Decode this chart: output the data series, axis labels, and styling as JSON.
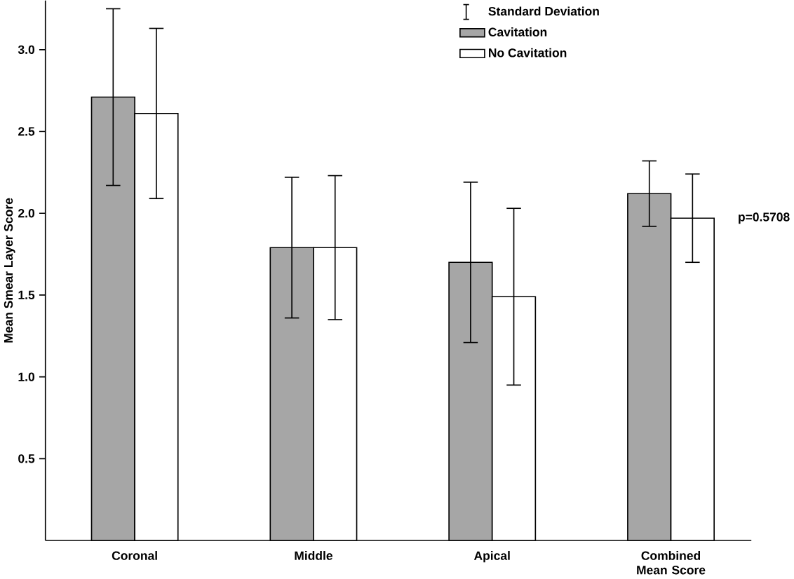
{
  "chart_data": {
    "type": "bar",
    "ylabel": "Mean Smear Layer Score",
    "categories": [
      "Coronal",
      "Middle",
      "Apical",
      "Combined Mean Score"
    ],
    "series": [
      {
        "name": "Cavitation",
        "color": "#a6a6a6",
        "values": [
          2.71,
          1.79,
          1.7,
          2.12
        ],
        "errors": [
          0.54,
          0.43,
          0.49,
          0.2
        ]
      },
      {
        "name": "No Cavitation",
        "color": "#ffffff",
        "values": [
          2.61,
          1.79,
          1.49,
          1.97
        ],
        "errors": [
          0.52,
          0.44,
          0.54,
          0.27
        ]
      }
    ],
    "ylim": [
      0,
      3.3
    ],
    "yticks": [
      {
        "value": 0.5,
        "label": "0.5"
      },
      {
        "value": 1.0,
        "label": "1.0"
      },
      {
        "value": 1.5,
        "label": "1.5"
      },
      {
        "value": 2.0,
        "label": "2.0"
      },
      {
        "value": 2.5,
        "label": "2.5"
      },
      {
        "value": 3.0,
        "label": "3.0"
      }
    ],
    "annotations": [
      "Standard Deviation",
      "p=0.5708"
    ],
    "legend": "top right"
  }
}
